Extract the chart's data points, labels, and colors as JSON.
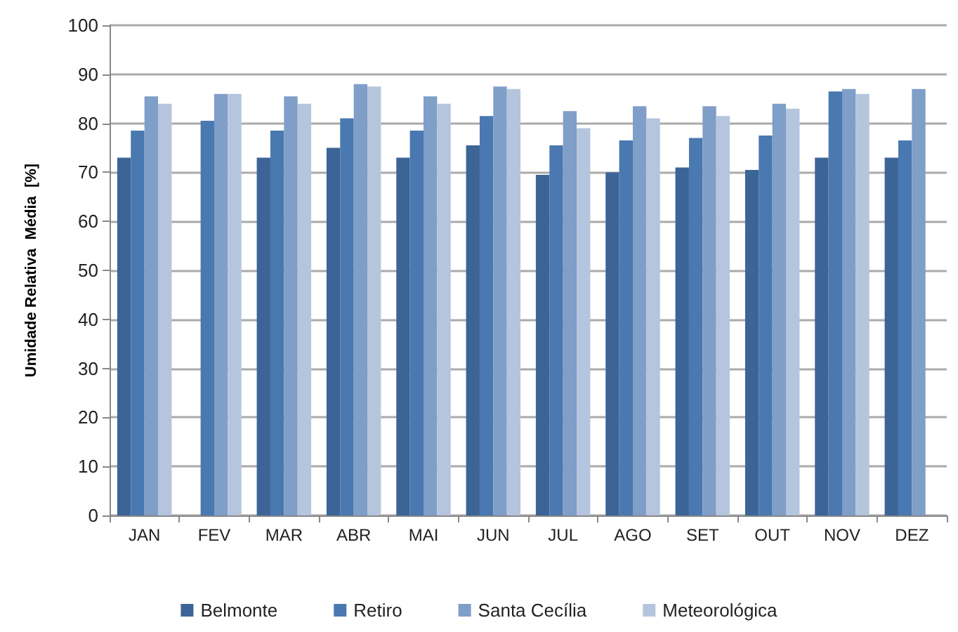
{
  "chart_data": {
    "type": "bar",
    "ylabel": "Umidade Relativa  Média  [%]",
    "categories": [
      "JAN",
      "FEV",
      "MAR",
      "ABR",
      "MAI",
      "JUN",
      "JUL",
      "AGO",
      "SET",
      "OUT",
      "NOV",
      "DEZ"
    ],
    "series": [
      {
        "name": "Belmonte",
        "color": "#3c6496",
        "values": [
          73,
          null,
          73,
          75,
          73,
          75.5,
          69.5,
          70,
          71,
          70.5,
          73,
          73
        ]
      },
      {
        "name": "Retiro",
        "color": "#4a78b0",
        "values": [
          78.5,
          80.5,
          78.5,
          81,
          78.5,
          81.5,
          75.5,
          76.5,
          77,
          77.5,
          86.5,
          76.5
        ]
      },
      {
        "name": "Santa Cecília",
        "color": "#7f9ec8",
        "values": [
          85.5,
          86,
          85.5,
          88,
          85.5,
          87.5,
          82.5,
          83.5,
          83.5,
          84,
          87,
          87
        ]
      },
      {
        "name": "Meteorológica",
        "color": "#b6c5de",
        "values": [
          84,
          86,
          84,
          87.5,
          84,
          87,
          79,
          81,
          81.5,
          83,
          86,
          null
        ]
      }
    ],
    "ylim": [
      0,
      100
    ],
    "yticks": [
      0,
      10,
      20,
      30,
      40,
      50,
      60,
      70,
      80,
      90,
      100
    ],
    "grid": "y",
    "legend": "bottom"
  }
}
